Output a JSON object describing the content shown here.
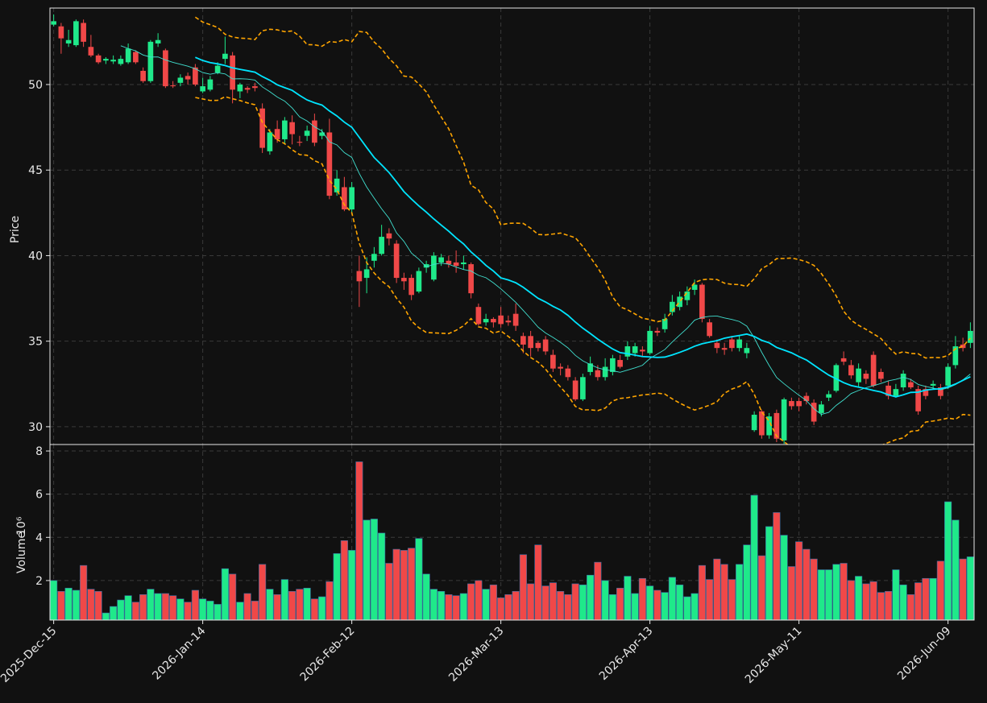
{
  "chart_data": {
    "type": "candlestick",
    "ylabel": "Price",
    "volume_label": "Volume",
    "volume_scale_label": "10⁶",
    "up_color": "#1fe98a",
    "down_color": "#f04848",
    "grid": true,
    "xlim": [
      -0.5,
      123.5
    ],
    "ylim": [
      28.96,
      54.47
    ],
    "yticks": [
      30,
      35,
      40,
      45,
      50
    ],
    "volume_ylim": [
      0.17,
      8.3
    ],
    "volume_yticks": [
      2,
      4,
      6,
      8
    ],
    "moving_averages": [
      {
        "window": 10,
        "color": "#40e0d0"
      },
      {
        "window": 20,
        "color": "#00e5ff"
      }
    ],
    "bollinger": {
      "window": 20,
      "std": 2,
      "color": "#ffa500"
    },
    "categories": [
      "2025-Dec-15",
      null,
      null,
      null,
      null,
      null,
      null,
      null,
      null,
      null,
      null,
      null,
      null,
      null,
      null,
      null,
      null,
      null,
      null,
      null,
      "2026-Jan-14",
      null,
      null,
      null,
      null,
      null,
      null,
      null,
      null,
      null,
      null,
      null,
      null,
      null,
      null,
      null,
      null,
      null,
      null,
      null,
      "2026-Feb-12",
      null,
      null,
      null,
      null,
      null,
      null,
      null,
      null,
      null,
      null,
      null,
      null,
      null,
      null,
      null,
      null,
      null,
      null,
      null,
      "2026-Mar-13",
      null,
      null,
      null,
      null,
      null,
      null,
      null,
      null,
      null,
      null,
      null,
      null,
      null,
      null,
      null,
      null,
      null,
      null,
      null,
      "2026-Apr-13",
      null,
      null,
      null,
      null,
      null,
      null,
      null,
      null,
      null,
      null,
      null,
      null,
      null,
      null,
      null,
      null,
      null,
      null,
      null,
      "2026-May-11",
      null,
      null,
      null,
      null,
      null,
      null,
      null,
      null,
      null,
      null,
      null,
      null,
      null,
      null,
      null,
      null,
      null,
      null,
      null,
      "2026-Jun-09",
      null,
      null,
      null
    ],
    "open": [
      53.5,
      53.4,
      52.4,
      52.3,
      53.6,
      52.2,
      51.7,
      51.4,
      51.35,
      51.2,
      51.3,
      51.9,
      50.8,
      50.2,
      52.4,
      52.0,
      49.95,
      50.1,
      50.5,
      51.0,
      49.6,
      49.7,
      50.7,
      51.5,
      51.7,
      49.6,
      49.8,
      49.9,
      48.6,
      46.1,
      47.4,
      46.8,
      47.8,
      46.65,
      47.0,
      47.9,
      47.0,
      47.2,
      43.7,
      44.0,
      42.7,
      39.1,
      38.7,
      39.7,
      40.1,
      41.3,
      40.7,
      38.7,
      38.7,
      37.9,
      39.3,
      38.6,
      39.6,
      39.7,
      39.6,
      39.5,
      39.5,
      37.0,
      36.1,
      36.3,
      36.5,
      36.2,
      36.6,
      35.3,
      35.3,
      34.9,
      35.1,
      34.2,
      33.5,
      33.4,
      32.7,
      31.6,
      33.2,
      33.3,
      32.9,
      33.2,
      33.9,
      34.1,
      34.3,
      34.5,
      34.3,
      35.6,
      35.7,
      36.7,
      37.0,
      37.4,
      38.0,
      38.3,
      36.1,
      34.9,
      34.6,
      35.1,
      34.6,
      34.3,
      29.8,
      30.9,
      29.5,
      30.8,
      29.2,
      31.5,
      31.5,
      31.8,
      31.4,
      30.8,
      31.7,
      32.1,
      34.0,
      33.6,
      32.6,
      33.1,
      34.2,
      33.2,
      32.4,
      31.8,
      32.3,
      32.6,
      32.2,
      32.2,
      32.4,
      32.3,
      32.4,
      33.6,
      34.8,
      34.9
    ],
    "high": [
      54.1,
      53.6,
      53.2,
      53.8,
      53.8,
      52.9,
      51.8,
      51.6,
      51.7,
      51.7,
      52.4,
      52.0,
      51.0,
      52.6,
      53.0,
      52.1,
      50.2,
      50.6,
      50.7,
      51.2,
      50.4,
      50.5,
      51.3,
      52.8,
      51.9,
      50.1,
      49.9,
      50.1,
      48.9,
      47.4,
      47.9,
      48.1,
      48.2,
      47.0,
      47.6,
      48.3,
      47.4,
      48.0,
      45.0,
      44.6,
      44.3,
      40.0,
      39.9,
      40.5,
      41.8,
      41.6,
      40.9,
      39.0,
      38.9,
      39.3,
      39.7,
      40.2,
      40.1,
      40.0,
      40.3,
      40.0,
      39.6,
      37.2,
      36.6,
      36.4,
      37.0,
      36.5,
      37.2,
      35.5,
      35.6,
      35.0,
      35.3,
      34.5,
      33.7,
      33.6,
      32.9,
      33.1,
      34.1,
      33.6,
      34.0,
      34.2,
      34.2,
      35.0,
      34.9,
      34.7,
      35.9,
      35.8,
      36.6,
      37.7,
      37.9,
      38.2,
      38.6,
      38.4,
      36.3,
      35.1,
      34.9,
      35.3,
      35.3,
      34.9,
      30.9,
      31.0,
      30.8,
      31.0,
      31.7,
      31.7,
      31.7,
      32.0,
      31.6,
      31.5,
      32.1,
      33.7,
      34.4,
      33.9,
      33.7,
      33.3,
      34.4,
      33.4,
      32.7,
      32.5,
      33.3,
      32.8,
      32.4,
      32.4,
      32.7,
      32.5,
      33.7,
      35.3,
      35.2,
      36.1
    ],
    "low": [
      53.4,
      51.8,
      52.2,
      52.2,
      52.2,
      51.6,
      51.2,
      51.2,
      51.2,
      51.1,
      51.2,
      51.2,
      50.1,
      50.1,
      52.2,
      49.8,
      49.8,
      49.9,
      50.0,
      49.9,
      49.5,
      49.6,
      50.6,
      51.2,
      48.9,
      49.2,
      49.5,
      49.6,
      46.0,
      45.9,
      46.6,
      46.5,
      46.5,
      46.4,
      46.7,
      46.4,
      46.8,
      43.3,
      43.5,
      42.6,
      42.5,
      37.0,
      37.8,
      39.3,
      40.0,
      40.6,
      38.4,
      38.0,
      37.4,
      37.8,
      39.0,
      38.5,
      39.4,
      39.3,
      39.0,
      39.2,
      37.5,
      35.9,
      35.9,
      35.8,
      35.8,
      35.9,
      35.6,
      34.3,
      34.1,
      34.4,
      34.2,
      33.2,
      33.0,
      32.7,
      31.5,
      31.5,
      33.0,
      32.7,
      32.7,
      33.0,
      33.4,
      33.9,
      34.1,
      34.1,
      34.2,
      35.3,
      35.5,
      36.5,
      36.8,
      37.1,
      37.7,
      36.1,
      35.2,
      34.3,
      34.2,
      34.4,
      34.4,
      34.0,
      29.7,
      29.3,
      29.3,
      29.1,
      29.0,
      31.0,
      30.9,
      31.3,
      30.1,
      30.6,
      31.5,
      32.0,
      33.6,
      32.8,
      32.3,
      32.5,
      32.3,
      32.6,
      31.6,
      31.7,
      32.1,
      32.2,
      30.7,
      31.6,
      32.2,
      31.6,
      32.2,
      33.4,
      34.4,
      34.6
    ],
    "close": [
      53.7,
      52.7,
      52.6,
      53.7,
      52.5,
      51.7,
      51.3,
      51.5,
      51.45,
      51.5,
      52.1,
      51.3,
      50.2,
      52.5,
      52.6,
      49.9,
      49.9,
      50.4,
      50.3,
      50.0,
      49.9,
      50.3,
      51.1,
      51.8,
      49.7,
      50.0,
      49.7,
      49.8,
      46.3,
      47.2,
      46.8,
      47.9,
      47.1,
      46.6,
      47.3,
      46.6,
      47.2,
      43.5,
      44.5,
      42.7,
      44.0,
      38.5,
      39.2,
      40.1,
      41.1,
      41.0,
      38.7,
      38.5,
      37.7,
      39.1,
      39.5,
      40.0,
      39.9,
      39.5,
      39.4,
      39.6,
      37.8,
      36.0,
      36.3,
      36.1,
      36.0,
      36.1,
      35.9,
      34.8,
      34.6,
      34.6,
      34.4,
      33.4,
      33.4,
      32.9,
      31.6,
      32.9,
      33.7,
      32.9,
      33.5,
      34.0,
      33.5,
      34.7,
      34.7,
      34.4,
      35.6,
      35.5,
      36.3,
      37.3,
      37.6,
      37.9,
      38.3,
      36.3,
      35.3,
      34.6,
      34.5,
      34.6,
      35.1,
      34.6,
      30.7,
      29.5,
      30.6,
      29.3,
      31.6,
      31.2,
      31.2,
      31.5,
      30.3,
      31.3,
      31.9,
      33.6,
      33.8,
      33.0,
      33.4,
      32.8,
      32.4,
      32.8,
      31.8,
      32.2,
      33.1,
      32.3,
      30.9,
      31.8,
      32.5,
      31.8,
      33.5,
      34.7,
      34.6,
      35.6
    ],
    "volume": [
      2.0,
      1.5,
      1.65,
      1.55,
      2.7,
      1.6,
      1.5,
      0.5,
      0.8,
      1.1,
      1.3,
      1.0,
      1.35,
      1.6,
      1.4,
      1.4,
      1.3,
      1.15,
      1.0,
      1.55,
      1.15,
      1.05,
      0.9,
      2.55,
      2.3,
      1.0,
      1.4,
      1.05,
      2.75,
      1.6,
      1.35,
      2.05,
      1.5,
      1.6,
      1.65,
      1.15,
      1.25,
      1.95,
      3.25,
      3.85,
      3.4,
      7.5,
      4.8,
      4.85,
      4.2,
      2.8,
      3.45,
      3.4,
      3.5,
      3.95,
      2.3,
      1.6,
      1.5,
      1.35,
      1.3,
      1.4,
      1.85,
      2.0,
      1.6,
      1.8,
      1.2,
      1.35,
      1.5,
      3.2,
      1.85,
      3.65,
      1.75,
      1.9,
      1.5,
      1.35,
      1.85,
      1.8,
      2.25,
      2.85,
      2.0,
      1.35,
      1.65,
      2.2,
      1.4,
      2.1,
      1.75,
      1.55,
      1.45,
      2.15,
      1.8,
      1.25,
      1.4,
      2.7,
      2.05,
      3.0,
      2.75,
      2.05,
      2.75,
      3.65,
      5.95,
      3.15,
      4.5,
      5.15,
      4.1,
      2.65,
      3.8,
      3.45,
      3.0,
      2.5,
      2.5,
      2.75,
      2.8,
      2.0,
      2.2,
      1.85,
      1.95,
      1.45,
      1.5,
      2.5,
      1.8,
      1.35,
      1.9,
      2.1,
      2.1,
      2.9,
      5.65,
      4.8,
      3.0,
      3.1
    ]
  }
}
